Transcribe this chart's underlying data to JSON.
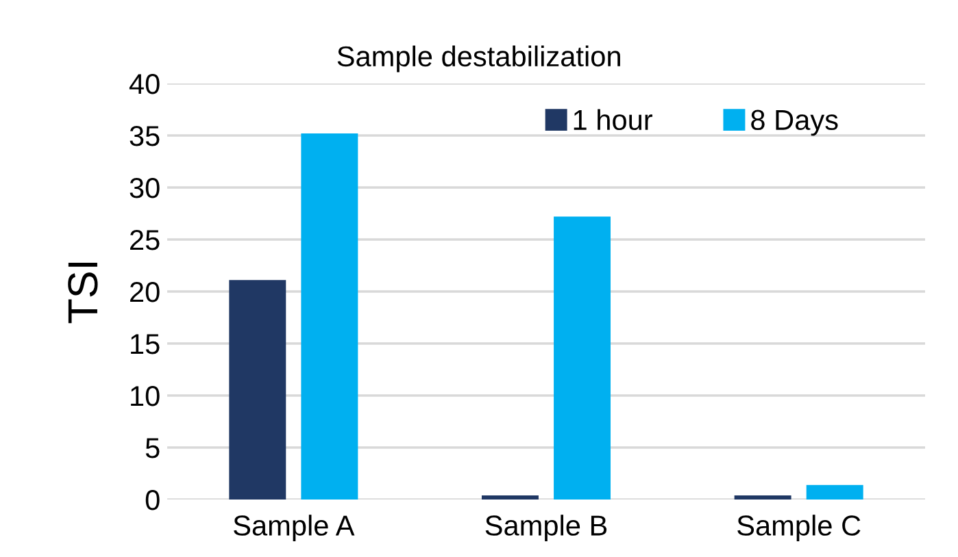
{
  "chart_data": {
    "type": "bar",
    "title": "Sample destabilization",
    "ylabel": "TSI",
    "categories": [
      "Sample A",
      "Sample B",
      "Sample C"
    ],
    "series": [
      {
        "name": "1 hour",
        "color": "#203864",
        "values": [
          21.1,
          0.4,
          0.4
        ]
      },
      {
        "name": "8 Days",
        "color": "#00b0f0",
        "values": [
          35.2,
          27.2,
          1.4
        ]
      }
    ],
    "ylim": [
      0,
      40
    ],
    "yticks": [
      0,
      5,
      10,
      15,
      20,
      25,
      30,
      35,
      40
    ],
    "grid": "y",
    "legend": "top right"
  }
}
